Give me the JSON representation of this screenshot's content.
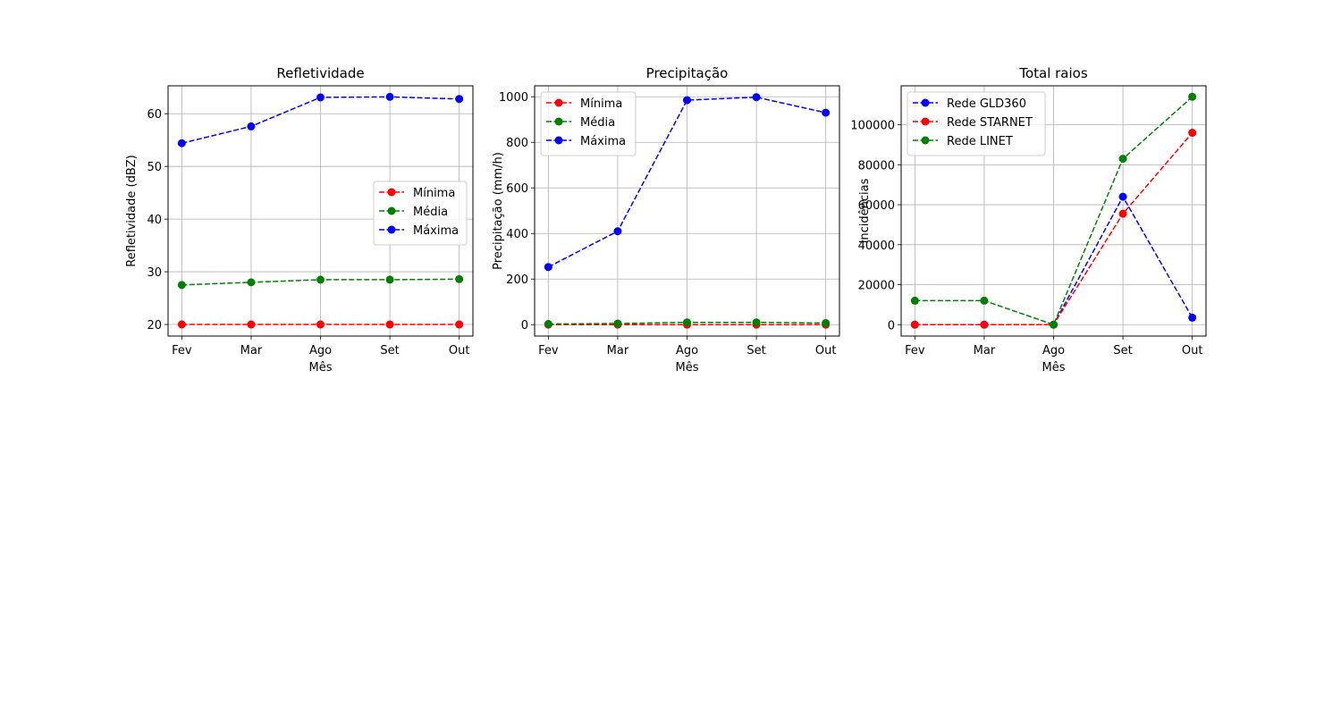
{
  "chart_data": [
    {
      "type": "line",
      "title": "Refletividade",
      "xlabel": "Mês",
      "ylabel": "Refletividade (dBZ)",
      "categories": [
        "Fev",
        "Mar",
        "Ago",
        "Set",
        "Out"
      ],
      "ylim": [
        17.8,
        65.3
      ],
      "yticks": [
        20,
        30,
        40,
        50,
        60
      ],
      "grid": true,
      "legend_position": "center-right",
      "series": [
        {
          "name": "Mínima",
          "color": "#ff0000",
          "values": [
            20,
            20,
            20,
            20,
            20
          ]
        },
        {
          "name": "Média",
          "color": "#008000",
          "values": [
            27.5,
            28.0,
            28.5,
            28.5,
            28.6
          ]
        },
        {
          "name": "Máxima",
          "color": "#0000ff",
          "values": [
            54.4,
            57.6,
            63.1,
            63.2,
            62.8
          ]
        }
      ]
    },
    {
      "type": "line",
      "title": "Precipitação",
      "xlabel": "Mês",
      "ylabel": "Precipitação (mm/h)",
      "categories": [
        "Fev",
        "Mar",
        "Ago",
        "Set",
        "Out"
      ],
      "ylim": [
        -50,
        1048
      ],
      "yticks": [
        0,
        200,
        400,
        600,
        800,
        1000
      ],
      "grid": true,
      "legend_position": "upper-left",
      "series": [
        {
          "name": "Mínima",
          "color": "#ff0000",
          "values": [
            0,
            0,
            0,
            0,
            0
          ]
        },
        {
          "name": "Média",
          "color": "#008000",
          "values": [
            3,
            5,
            10,
            10,
            7
          ]
        },
        {
          "name": "Máxima",
          "color": "#0000ff",
          "values": [
            253,
            410,
            985,
            998,
            930
          ]
        }
      ]
    },
    {
      "type": "line",
      "title": "Total raios",
      "xlabel": "Mês",
      "ylabel": "Incidências",
      "categories": [
        "Fev",
        "Mar",
        "Ago",
        "Set",
        "Out"
      ],
      "ylim": [
        -5700,
        119500
      ],
      "yticks": [
        0,
        20000,
        40000,
        60000,
        80000,
        100000
      ],
      "grid": true,
      "legend_position": "upper-left",
      "series": [
        {
          "name": "Rede GLD360",
          "color": "#0000ff",
          "values": [
            0,
            0,
            0,
            64000,
            3500
          ]
        },
        {
          "name": "Rede STARNET",
          "color": "#ff0000",
          "values": [
            0,
            0,
            0,
            55500,
            96000
          ]
        },
        {
          "name": "Rede LINET",
          "color": "#008000",
          "values": [
            12000,
            12000,
            0,
            83000,
            114000
          ]
        }
      ]
    }
  ]
}
